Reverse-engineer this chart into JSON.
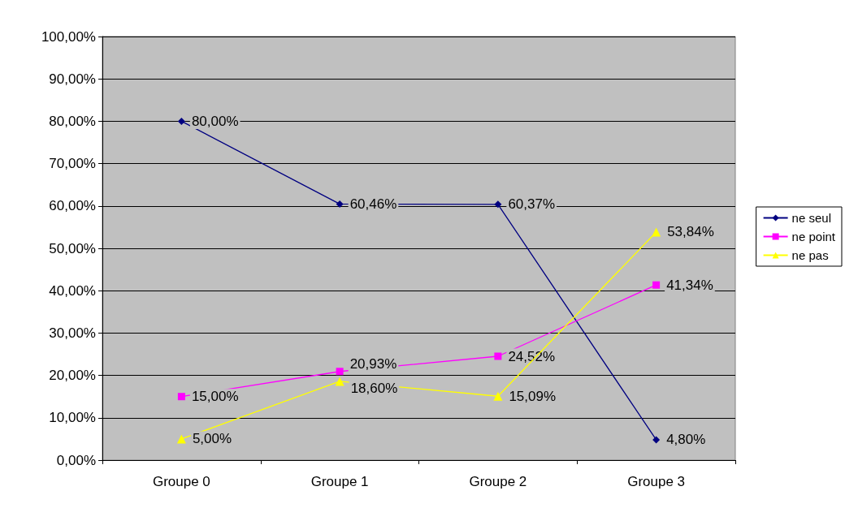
{
  "chart_data": {
    "type": "line",
    "categories": [
      "Groupe 0",
      "Groupe 1",
      "Groupe 2",
      "Groupe 3"
    ],
    "series": [
      {
        "name": "ne seul",
        "color": "#000080",
        "marker": "diamond",
        "values": [
          80.0,
          60.46,
          60.37,
          4.8
        ],
        "value_labels": [
          "80,00%",
          "60,46%",
          "60,37%",
          "4,80%"
        ]
      },
      {
        "name": "ne point",
        "color": "#ff00ff",
        "marker": "square",
        "values": [
          15.0,
          20.93,
          24.52,
          41.34
        ],
        "value_labels": [
          "15,00%",
          "20,93%",
          "24,52%",
          "41,34%"
        ]
      },
      {
        "name": "ne pas",
        "color": "#ffff00",
        "marker": "triangle",
        "values": [
          5.0,
          18.6,
          15.09,
          53.84
        ],
        "value_labels": [
          "5,00%",
          "18,60%",
          "15,09%",
          "53,84%"
        ]
      }
    ],
    "ylim": [
      0,
      100
    ],
    "yticks": [
      {
        "value": 0,
        "label": "0,00%"
      },
      {
        "value": 10,
        "label": "10,00%"
      },
      {
        "value": 20,
        "label": "20,00%"
      },
      {
        "value": 30,
        "label": "30,00%"
      },
      {
        "value": 40,
        "label": "40,00%"
      },
      {
        "value": 50,
        "label": "50,00%"
      },
      {
        "value": 60,
        "label": "60,00%"
      },
      {
        "value": 70,
        "label": "70,00%"
      },
      {
        "value": 80,
        "label": "80,00%"
      },
      {
        "value": 90,
        "label": "90,00%"
      },
      {
        "value": 100,
        "label": "100,00%"
      }
    ],
    "grid": "y",
    "legend": "right",
    "line_style": "solid"
  }
}
